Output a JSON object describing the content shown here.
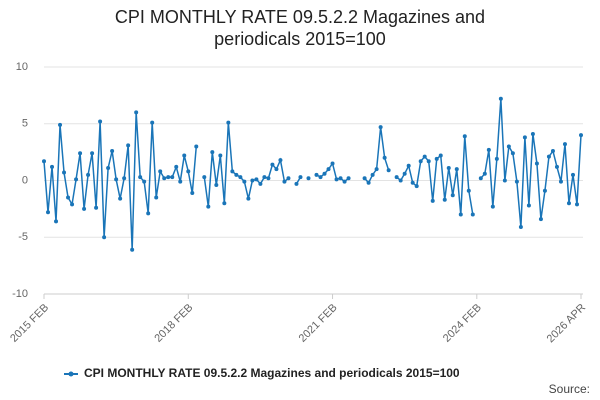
{
  "chart_data": {
    "type": "line",
    "title": "CPI MONTHLY RATE 09.5.2.2 Magazines and periodicals 2015=100",
    "source": "Source:",
    "categories": [
      "2015 FEB",
      null,
      null,
      null,
      null,
      null,
      null,
      null,
      null,
      null,
      null,
      null,
      null,
      null,
      null,
      null,
      null,
      null,
      null,
      null,
      null,
      null,
      null,
      null,
      null,
      null,
      null,
      null,
      null,
      null,
      null,
      null,
      null,
      null,
      null,
      null,
      "2018 FEB",
      null,
      null,
      null,
      null,
      null,
      null,
      null,
      null,
      null,
      null,
      null,
      null,
      null,
      null,
      null,
      null,
      null,
      null,
      null,
      null,
      null,
      null,
      null,
      null,
      null,
      null,
      null,
      null,
      null,
      null,
      null,
      null,
      null,
      null,
      null,
      "2021 FEB",
      null,
      null,
      null,
      null,
      null,
      null,
      null,
      null,
      null,
      null,
      null,
      null,
      null,
      null,
      null,
      null,
      null,
      null,
      null,
      null,
      null,
      null,
      null,
      null,
      null,
      null,
      null,
      null,
      null,
      null,
      null,
      null,
      null,
      null,
      null,
      "2024 FEB",
      null,
      null,
      null,
      null,
      null,
      null,
      null,
      null,
      null,
      null,
      null,
      null,
      null,
      null,
      null,
      null,
      null,
      null,
      null,
      null,
      null,
      null,
      null,
      null,
      null,
      "2026 APR"
    ],
    "series": [
      {
        "name": "CPI MONTHLY RATE 09.5.2.2 Magazines and periodicals 2015=100",
        "color": "#1a75b8",
        "values": [
          1.7,
          -2.8,
          1.2,
          -3.6,
          4.9,
          0.7,
          -1.5,
          -2.1,
          0.1,
          2.4,
          -2.5,
          0.5,
          2.4,
          -2.4,
          5.2,
          -5.0,
          1.1,
          2.6,
          0.1,
          -1.6,
          0.2,
          3.1,
          -6.1,
          6.0,
          0.3,
          -0.1,
          -2.9,
          5.1,
          -1.5,
          0.8,
          0.2,
          0.3,
          0.3,
          1.2,
          -0.1,
          2.2,
          0.8,
          -1.1,
          3.0,
          null,
          0.3,
          -2.3,
          2.5,
          -0.4,
          2.2,
          -2.0,
          5.1,
          0.8,
          0.5,
          0.3,
          -0.1,
          -1.6,
          0.0,
          0.1,
          -0.3,
          0.3,
          0.2,
          1.4,
          1.0,
          1.8,
          -0.1,
          0.2,
          null,
          -0.3,
          0.3,
          null,
          0.2,
          null,
          0.5,
          0.3,
          0.6,
          1.0,
          1.5,
          0.1,
          0.2,
          -0.1,
          0.2,
          null,
          null,
          null,
          0.2,
          -0.2,
          0.5,
          1.0,
          4.7,
          2.0,
          0.9,
          null,
          0.3,
          0.0,
          0.6,
          1.3,
          -0.2,
          -0.5,
          1.7,
          2.1,
          1.7,
          -1.8,
          1.9,
          2.2,
          -1.7,
          1.1,
          -1.3,
          1.0,
          -3.0,
          3.9,
          -0.9,
          -3.0,
          null,
          0.2,
          0.6,
          2.7,
          -2.3,
          1.9,
          7.2,
          0.0,
          3.0,
          2.4,
          -0.1,
          -4.1,
          3.8,
          -2.2,
          4.1,
          1.5,
          -3.4,
          -0.9,
          2.1,
          2.6,
          1.2,
          -0.1,
          3.2,
          -2.0,
          0.5,
          -2.1,
          4.0
        ]
      }
    ],
    "ylim": [
      -10,
      10
    ],
    "yticks": [
      -10,
      -5,
      0,
      5,
      10
    ],
    "grid": true
  }
}
